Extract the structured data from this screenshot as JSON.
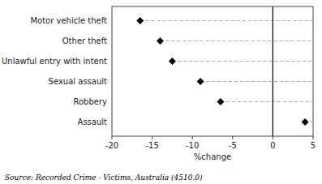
{
  "chart_data": {
    "type": "dot",
    "categories": [
      "Motor vehicle theft",
      "Other theft",
      "Unlawful entry with intent",
      "Sexual assault",
      "Robbery",
      "Assault"
    ],
    "values": [
      -16.5,
      -14.0,
      -12.5,
      -9.0,
      -6.5,
      4.0
    ],
    "xlim": [
      -20,
      5
    ],
    "xticks": [
      -20,
      -15,
      -10,
      -5,
      0,
      5
    ],
    "xlabel": "%change",
    "annotations": [
      "Source:  Recorded Crime - Victims, Australia (4510.0)"
    ],
    "color": "#000000",
    "marker": "diamond",
    "line_style": "dashed",
    "vline": 0
  }
}
